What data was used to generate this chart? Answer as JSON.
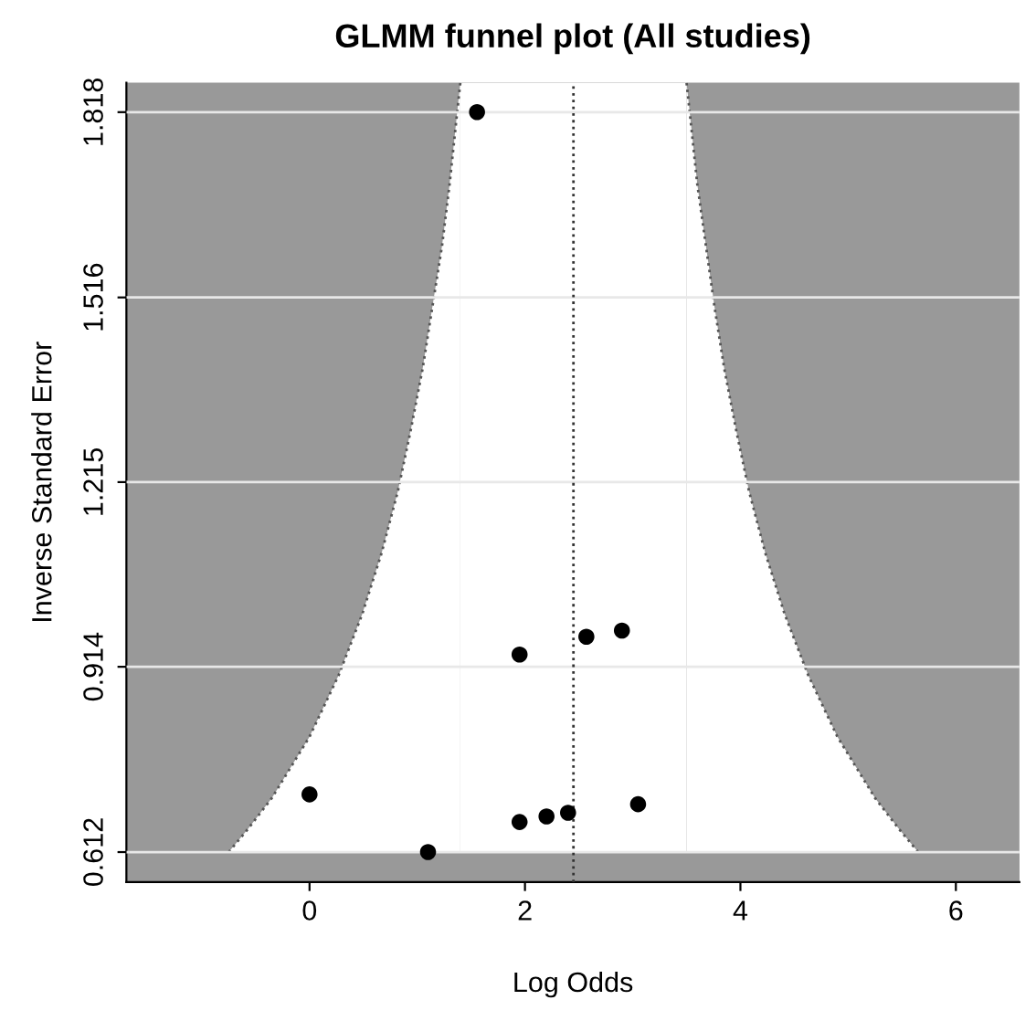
{
  "chart_data": {
    "type": "scatter",
    "title": "GLMM funnel plot (All studies)",
    "xlabel": "Log Odds",
    "ylabel": "Inverse Standard Error",
    "xlim": [
      -1.7,
      6.59
    ],
    "ylim": [
      0.563,
      1.866
    ],
    "xticks": [
      0,
      2,
      4,
      6
    ],
    "yticks": [
      0.612,
      0.914,
      1.215,
      1.516,
      1.818
    ],
    "grid": "y",
    "series": [
      {
        "type": "area",
        "line_style": "dotted",
        "color": "#555555",
        "x": [
          -0.75,
          -0.57,
          -0.35,
          0.0,
          0.27,
          0.49,
          0.67,
          0.82,
          0.94,
          1.05,
          1.14,
          1.23,
          1.3,
          1.36,
          1.4
        ],
        "values": [
          0.612,
          0.65,
          0.7,
          0.8,
          0.9,
          1.0,
          1.1,
          1.2,
          1.3,
          1.4,
          1.5,
          1.6,
          1.7,
          1.8,
          1.866
        ]
      },
      {
        "type": "area",
        "line_style": "dotted",
        "color": "#555555",
        "x": [
          5.65,
          5.47,
          5.25,
          4.9,
          4.63,
          4.41,
          4.23,
          4.08,
          3.96,
          3.85,
          3.76,
          3.68,
          3.6,
          3.54,
          3.5
        ],
        "values": [
          0.612,
          0.65,
          0.7,
          0.8,
          0.9,
          1.0,
          1.1,
          1.2,
          1.3,
          1.4,
          1.5,
          1.6,
          1.7,
          1.8,
          1.866
        ]
      },
      {
        "marker": "circle",
        "color": "#000000",
        "x": [
          1.555,
          1.95,
          2.57,
          2.9,
          0.0,
          1.1,
          1.95,
          2.2,
          2.4,
          3.05
        ],
        "values": [
          1.818,
          0.934,
          0.963,
          0.973,
          0.706,
          0.612,
          0.661,
          0.67,
          0.676,
          0.69
        ]
      }
    ],
    "bands": [
      {
        "axis": "x",
        "from": 1.4,
        "to": 3.5,
        "color": "#ffffff"
      },
      {
        "axis": "y",
        "from": 0.563,
        "to": 0.612,
        "color": "#999999"
      }
    ],
    "ref_lines": [
      {
        "axis": "x",
        "value": 2.45,
        "line_style": "dotted",
        "color": "#333333"
      }
    ]
  }
}
